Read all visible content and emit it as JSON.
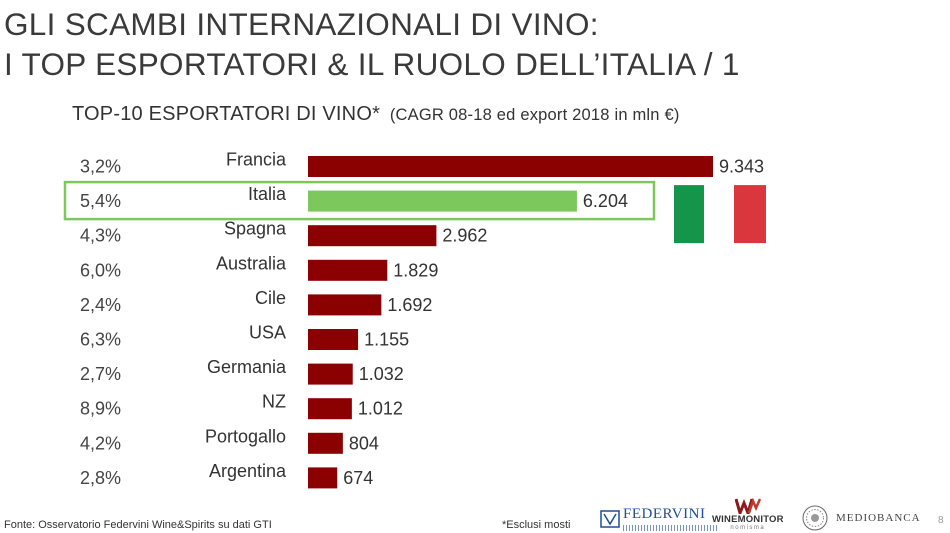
{
  "header": {
    "title_line1": "GLI SCAMBI INTERNAZIONALI DI VINO:",
    "title_line2": "I TOP ESPORTATORI & IL RUOLO DELL’ITALIA / 1"
  },
  "chart_data": {
    "type": "bar",
    "orientation": "horizontal",
    "title": "TOP-10 ESPORTATORI DI VINO*",
    "subtitle": "(CAGR 08-18 ed export 2018 in mln €)",
    "categories": [
      "Francia",
      "Italia",
      "Spagna",
      "Australia",
      "Cile",
      "USA",
      "Germania",
      "NZ",
      "Portogallo",
      "Argentina"
    ],
    "values": [
      9343,
      6204,
      2962,
      1829,
      1692,
      1155,
      1032,
      1012,
      804,
      674
    ],
    "value_labels": [
      "9.343",
      "6.204",
      "2.962",
      "1.829",
      "1.692",
      "1.155",
      "1.032",
      "1.012",
      "804",
      "674"
    ],
    "cagr": [
      "3,2%",
      "5,4%",
      "4,3%",
      "6,0%",
      "2,4%",
      "6,3%",
      "2,7%",
      "8,9%",
      "4,2%",
      "2,8%"
    ],
    "highlight_category": "Italia",
    "colors": {
      "bar": "#8b0000",
      "highlight_bar": "#7dc85c",
      "highlight_box": "#7dc85c",
      "flag_green": "#14954a",
      "flag_white": "#ffffff",
      "flag_red": "#d9363e"
    },
    "grid": false,
    "legend": "none"
  },
  "footer": {
    "source": "Fonte: Osservatorio Federvini Wine&Spirits su dati GTI",
    "note": "*Esclusi mosti",
    "page_number": "8"
  },
  "logos": {
    "federvini": "FEDERVINI",
    "winemonitor": "WINEMONITOR",
    "winemonitor_sub": "nomisma",
    "mediobanca": "MEDIOBANCA"
  }
}
